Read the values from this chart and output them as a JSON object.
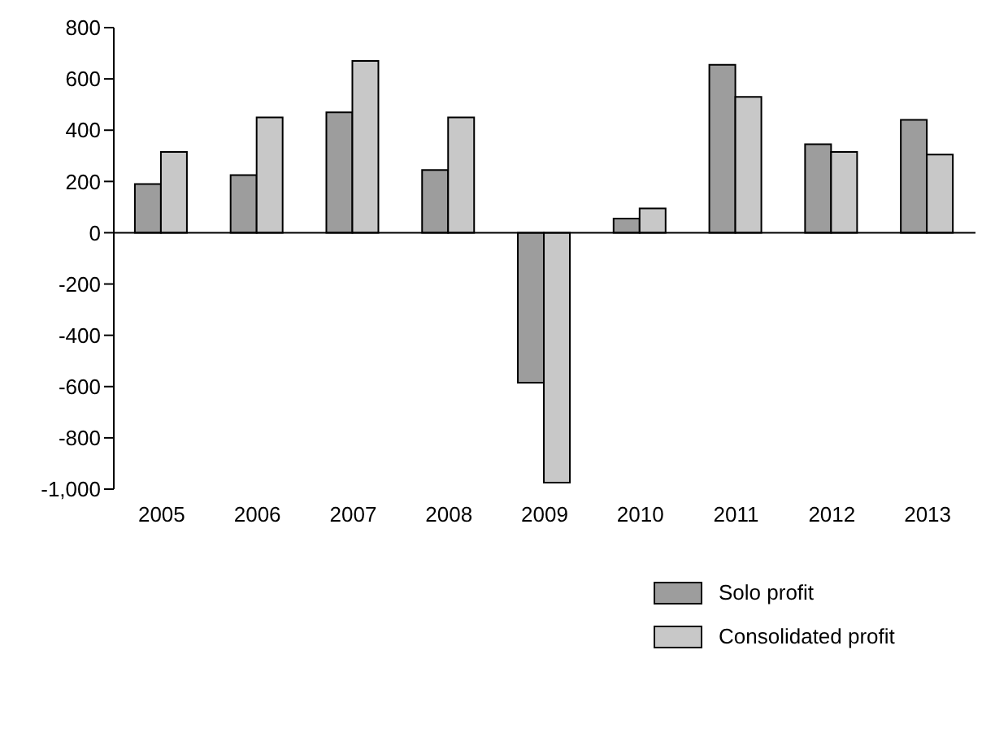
{
  "chart_data": {
    "type": "bar",
    "categories": [
      "2005",
      "2006",
      "2007",
      "2008",
      "2009",
      "2010",
      "2011",
      "2012",
      "2013"
    ],
    "series": [
      {
        "name": "Solo profit",
        "color": "#9d9d9d",
        "values": [
          190,
          225,
          470,
          245,
          -585,
          55,
          655,
          345,
          440
        ]
      },
      {
        "name": "Consolidated profit",
        "color": "#c8c8c8",
        "values": [
          315,
          450,
          670,
          450,
          -975,
          95,
          530,
          315,
          305
        ]
      }
    ],
    "ylim": [
      -1000,
      800
    ],
    "yticks": [
      {
        "value": -1000,
        "label": "-1,000"
      },
      -800,
      -600,
      -400,
      -200,
      0,
      200,
      400,
      600,
      800
    ],
    "grid": false,
    "ref_lines": [
      {
        "axis": "y",
        "value": 0,
        "color": "#000000"
      }
    ],
    "legend": "bottom right"
  }
}
